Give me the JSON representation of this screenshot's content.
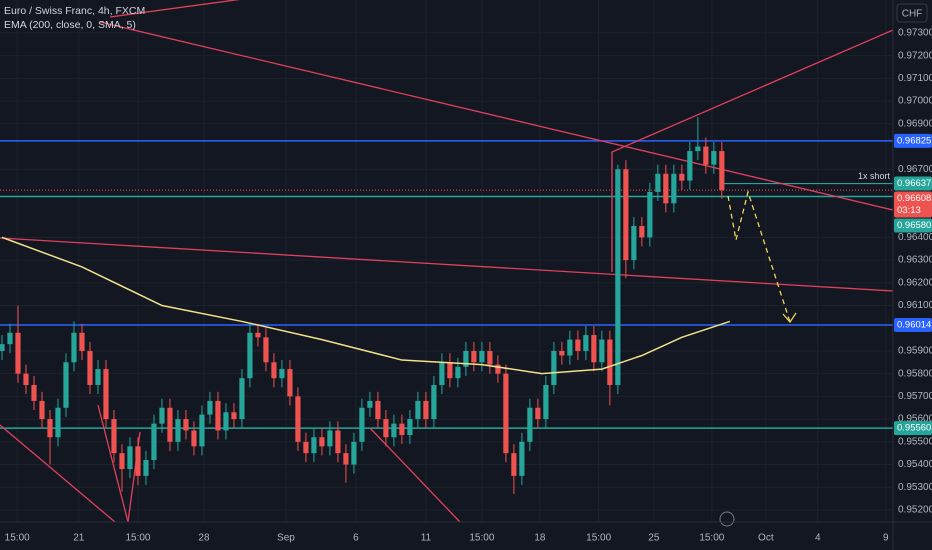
{
  "chart_data": {
    "type": "candlestick",
    "title": "Euro / Swiss Franc, 4h, FXCM",
    "currency": "CHF",
    "up_color": "#26a69a",
    "down_color": "#ef5350",
    "x": [
      0,
      1,
      2,
      3,
      4,
      5,
      6,
      7,
      8,
      9,
      10,
      11,
      12,
      13,
      14,
      15,
      16,
      17,
      18,
      19,
      20,
      21,
      22,
      23,
      24,
      25,
      26,
      27,
      28,
      29,
      30,
      31,
      32,
      33,
      34,
      35,
      36,
      37,
      38,
      39,
      40,
      41,
      42,
      43,
      44,
      45,
      46,
      47,
      48,
      49,
      50,
      51,
      52,
      53,
      54,
      55,
      56,
      57,
      58,
      59,
      60,
      61,
      62,
      63,
      64,
      65,
      66,
      67,
      68,
      69,
      70,
      71,
      72,
      73,
      74,
      75,
      76,
      77,
      78,
      79,
      80,
      81,
      82,
      83,
      84,
      85,
      86,
      87,
      88,
      89,
      90
    ],
    "open": [
      0.959,
      0.9593,
      0.9598,
      0.958,
      0.9575,
      0.9568,
      0.956,
      0.9552,
      0.9565,
      0.9585,
      0.9598,
      0.959,
      0.9575,
      0.9582,
      0.956,
      0.9545,
      0.9538,
      0.9548,
      0.9535,
      0.9542,
      0.9558,
      0.9565,
      0.955,
      0.956,
      0.9555,
      0.9548,
      0.9562,
      0.9568,
      0.9555,
      0.9563,
      0.956,
      0.9578,
      0.9598,
      0.9596,
      0.9585,
      0.9578,
      0.9582,
      0.957,
      0.955,
      0.9545,
      0.9552,
      0.9548,
      0.9555,
      0.9545,
      0.954,
      0.955,
      0.9565,
      0.9568,
      0.956,
      0.9552,
      0.9558,
      0.9553,
      0.956,
      0.9568,
      0.956,
      0.9575,
      0.9585,
      0.9578,
      0.9583,
      0.959,
      0.9585,
      0.959,
      0.9584,
      0.958,
      0.9545,
      0.9535,
      0.955,
      0.9565,
      0.956,
      0.9575,
      0.959,
      0.9588,
      0.9595,
      0.959,
      0.9597,
      0.9585,
      0.9595,
      0.9575,
      0.967,
      0.963,
      0.9645,
      0.964,
      0.966,
      0.9668,
      0.9655,
      0.9668,
      0.9665,
      0.9678,
      0.968,
      0.9672,
      0.9678
    ],
    "high": [
      0.9597,
      0.9602,
      0.961,
      0.9584,
      0.9579,
      0.9572,
      0.9564,
      0.9569,
      0.9589,
      0.9603,
      0.9602,
      0.9594,
      0.9586,
      0.9586,
      0.9564,
      0.9549,
      0.9552,
      0.9552,
      0.9546,
      0.9562,
      0.9569,
      0.9569,
      0.9564,
      0.9564,
      0.9559,
      0.9566,
      0.9572,
      0.9572,
      0.9567,
      0.9567,
      0.9582,
      0.9602,
      0.9602,
      0.96,
      0.9589,
      0.9586,
      0.9586,
      0.9574,
      0.9554,
      0.9556,
      0.9556,
      0.9559,
      0.9559,
      0.9549,
      0.9554,
      0.9569,
      0.9572,
      0.9572,
      0.9564,
      0.9562,
      0.9562,
      0.9564,
      0.9572,
      0.9572,
      0.9579,
      0.9589,
      0.9589,
      0.9587,
      0.9594,
      0.9594,
      0.9594,
      0.9594,
      0.9588,
      0.9584,
      0.9549,
      0.9554,
      0.9569,
      0.9569,
      0.9579,
      0.9594,
      0.9594,
      0.9599,
      0.9599,
      0.9601,
      0.9601,
      0.9599,
      0.9599,
      0.9672,
      0.9674,
      0.9649,
      0.9649,
      0.9664,
      0.9672,
      0.9672,
      0.9672,
      0.9672,
      0.9682,
      0.9693,
      0.9684,
      0.9682,
      0.9682
    ],
    "low": [
      0.9586,
      0.9589,
      0.9576,
      0.9571,
      0.9564,
      0.9556,
      0.954,
      0.9548,
      0.9561,
      0.9581,
      0.9586,
      0.9571,
      0.9571,
      0.9556,
      0.9541,
      0.9528,
      0.9534,
      0.9531,
      0.9531,
      0.9538,
      0.9554,
      0.9546,
      0.9546,
      0.9551,
      0.9544,
      0.9544,
      0.9558,
      0.9551,
      0.9551,
      0.9556,
      0.9556,
      0.9574,
      0.9592,
      0.9581,
      0.9574,
      0.9574,
      0.9566,
      0.9546,
      0.9541,
      0.9541,
      0.9544,
      0.9544,
      0.9541,
      0.9532,
      0.9536,
      0.9546,
      0.9561,
      0.9556,
      0.9548,
      0.9548,
      0.9549,
      0.9549,
      0.9556,
      0.9556,
      0.9556,
      0.9571,
      0.9574,
      0.9574,
      0.9579,
      0.9581,
      0.9581,
      0.958,
      0.9576,
      0.9541,
      0.9527,
      0.9531,
      0.9546,
      0.9556,
      0.9556,
      0.9571,
      0.9584,
      0.9584,
      0.9586,
      0.9586,
      0.9581,
      0.9581,
      0.9566,
      0.9571,
      0.9622,
      0.9626,
      0.9636,
      0.9636,
      0.9656,
      0.9651,
      0.9651,
      0.9661,
      0.9661,
      0.9674,
      0.9668,
      0.9668,
      0.9657
    ],
    "close": [
      0.9593,
      0.9598,
      0.958,
      0.9575,
      0.9568,
      0.956,
      0.9552,
      0.9565,
      0.9585,
      0.9598,
      0.959,
      0.9575,
      0.9582,
      0.956,
      0.9545,
      0.9538,
      0.9548,
      0.9535,
      0.9542,
      0.9558,
      0.9565,
      0.955,
      0.956,
      0.9555,
      0.9548,
      0.9562,
      0.9568,
      0.9555,
      0.9563,
      0.956,
      0.9578,
      0.9598,
      0.9596,
      0.9585,
      0.9578,
      0.9582,
      0.957,
      0.955,
      0.9545,
      0.9552,
      0.9548,
      0.9555,
      0.9545,
      0.954,
      0.955,
      0.9565,
      0.9568,
      0.956,
      0.9552,
      0.9558,
      0.9553,
      0.956,
      0.9568,
      0.956,
      0.9575,
      0.9585,
      0.9578,
      0.9583,
      0.959,
      0.9585,
      0.959,
      0.9584,
      0.958,
      0.9545,
      0.9535,
      0.955,
      0.9565,
      0.956,
      0.9575,
      0.959,
      0.9588,
      0.9595,
      0.959,
      0.9597,
      0.9585,
      0.9595,
      0.9575,
      0.967,
      0.963,
      0.9645,
      0.964,
      0.966,
      0.9668,
      0.9655,
      0.9668,
      0.9665,
      0.9678,
      0.968,
      0.9672,
      0.9678,
      0.96608
    ],
    "ema": {
      "name": "EMA (200, close, 0, SMA, 5)",
      "color": "#f2e08a",
      "x": [
        0,
        10,
        20,
        30,
        40,
        50,
        60,
        67.5,
        75,
        80,
        85,
        91
      ],
      "values": [
        0.964,
        0.9627,
        0.961,
        0.9603,
        0.9595,
        0.9586,
        0.9584,
        0.958,
        0.9582,
        0.9588,
        0.9596,
        0.9603
      ]
    },
    "levels": [
      {
        "value": 0.96825,
        "label": "0.96825",
        "color": "#2962ff"
      },
      {
        "value": 0.96637,
        "label": "0.96637",
        "color": "#26a69a",
        "note": "1x short"
      },
      {
        "value": 0.96608,
        "label": "0.96608",
        "color": "#ef5350",
        "countdown": "03:13"
      },
      {
        "value": 0.9658,
        "label": "0.96580",
        "color": "#26a69a"
      },
      {
        "value": 0.96014,
        "label": "0.96014",
        "color": "#2962ff"
      },
      {
        "value": 0.9556,
        "label": "0.95560",
        "color": "#26a69a"
      }
    ],
    "xlim": [
      -0.25,
      111.4
    ],
    "ylim": [
      0.95147,
      0.97445
    ],
    "yticks": [
      {
        "value": 0.973,
        "label": "0.97300"
      },
      {
        "value": 0.972,
        "label": "0.97200"
      },
      {
        "value": 0.971,
        "label": "0.97100"
      },
      {
        "value": 0.97,
        "label": "0.97000"
      },
      {
        "value": 0.969,
        "label": "0.96900"
      },
      {
        "value": 0.967,
        "label": "0.96700"
      },
      {
        "value": 0.964,
        "label": "0.96400"
      },
      {
        "value": 0.963,
        "label": "0.96300"
      },
      {
        "value": 0.962,
        "label": "0.96200"
      },
      {
        "value": 0.961,
        "label": "0.96100"
      },
      {
        "value": 0.959,
        "label": "0.95900"
      },
      {
        "value": 0.958,
        "label": "0.95800"
      },
      {
        "value": 0.957,
        "label": "0.95700"
      },
      {
        "value": 0.956,
        "label": "0.95600"
      },
      {
        "value": 0.955,
        "label": "0.95500"
      },
      {
        "value": 0.954,
        "label": "0.95400"
      },
      {
        "value": 0.953,
        "label": "0.95300"
      },
      {
        "value": 0.952,
        "label": "0.95200"
      }
    ],
    "xticks": [
      {
        "value": 1.9,
        "label": "15:00"
      },
      {
        "value": 9.6,
        "label": "21"
      },
      {
        "value": 17,
        "label": "15:00"
      },
      {
        "value": 25.25,
        "label": "28"
      },
      {
        "value": 35.5,
        "label": "Sep"
      },
      {
        "value": 44.25,
        "label": "6"
      },
      {
        "value": 53,
        "label": "11"
      },
      {
        "value": 60,
        "label": "15:00"
      },
      {
        "value": 67.25,
        "label": "18"
      },
      {
        "value": 74.6,
        "label": "15:00"
      },
      {
        "value": 81.5,
        "label": "25"
      },
      {
        "value": 88.75,
        "label": "15:00"
      },
      {
        "value": 95.5,
        "label": "Oct"
      },
      {
        "value": 102,
        "label": "4"
      },
      {
        "value": 110.5,
        "label": "9"
      }
    ],
    "grid": true
  }
}
